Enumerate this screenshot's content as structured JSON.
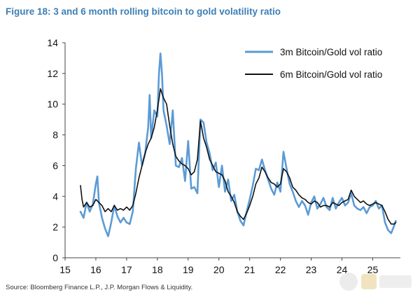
{
  "figure_title": "Figure 18: 3 and 6 month rolling bitcoin to gold volatility ratio",
  "source": "Source: Bloomberg Finance L.P., J.P. Morgan Flows & Liquidity.",
  "colors": {
    "series_3m": "#5b9bd5",
    "series_6m": "#111111",
    "title": "#3d7fb5"
  },
  "chart_data": {
    "type": "line",
    "title": "",
    "xlabel": "",
    "ylabel": "",
    "xlim": [
      15,
      25.9
    ],
    "ylim": [
      0,
      14
    ],
    "xticks": [
      15,
      16,
      17,
      18,
      19,
      20,
      21,
      22,
      23,
      24,
      25
    ],
    "yticks": [
      0,
      2,
      4,
      6,
      8,
      10,
      12,
      14
    ],
    "grid": false,
    "legend": "top-right",
    "series": [
      {
        "name": "3m Bitcoin/Gold vol ratio",
        "color": "#5b9bd5",
        "points": [
          [
            15.5,
            3.0
          ],
          [
            15.6,
            2.6
          ],
          [
            15.7,
            3.6
          ],
          [
            15.8,
            3.0
          ],
          [
            15.9,
            3.5
          ],
          [
            16.0,
            4.8
          ],
          [
            16.05,
            5.3
          ],
          [
            16.1,
            3.6
          ],
          [
            16.2,
            2.6
          ],
          [
            16.3,
            1.9
          ],
          [
            16.4,
            1.4
          ],
          [
            16.5,
            2.3
          ],
          [
            16.6,
            3.4
          ],
          [
            16.7,
            2.7
          ],
          [
            16.8,
            2.3
          ],
          [
            16.9,
            2.6
          ],
          [
            17.0,
            2.3
          ],
          [
            17.1,
            2.2
          ],
          [
            17.2,
            3.0
          ],
          [
            17.3,
            5.8
          ],
          [
            17.4,
            7.5
          ],
          [
            17.5,
            6.0
          ],
          [
            17.6,
            6.8
          ],
          [
            17.7,
            8.5
          ],
          [
            17.75,
            10.6
          ],
          [
            17.8,
            7.8
          ],
          [
            17.9,
            9.6
          ],
          [
            18.0,
            9.2
          ],
          [
            18.05,
            11.9
          ],
          [
            18.1,
            13.3
          ],
          [
            18.15,
            12.0
          ],
          [
            18.2,
            9.6
          ],
          [
            18.3,
            8.6
          ],
          [
            18.4,
            7.4
          ],
          [
            18.5,
            9.6
          ],
          [
            18.6,
            6.0
          ],
          [
            18.7,
            5.9
          ],
          [
            18.8,
            6.5
          ],
          [
            18.9,
            5.0
          ],
          [
            19.0,
            7.6
          ],
          [
            19.1,
            4.5
          ],
          [
            19.2,
            4.6
          ],
          [
            19.3,
            4.2
          ],
          [
            19.4,
            9.0
          ],
          [
            19.5,
            8.8
          ],
          [
            19.6,
            7.5
          ],
          [
            19.7,
            6.8
          ],
          [
            19.8,
            5.7
          ],
          [
            19.9,
            6.2
          ],
          [
            20.0,
            4.6
          ],
          [
            20.1,
            6.0
          ],
          [
            20.2,
            4.3
          ],
          [
            20.3,
            5.1
          ],
          [
            20.4,
            3.7
          ],
          [
            20.5,
            4.1
          ],
          [
            20.6,
            3.0
          ],
          [
            20.7,
            2.4
          ],
          [
            20.8,
            2.1
          ],
          [
            20.9,
            3.0
          ],
          [
            21.0,
            3.8
          ],
          [
            21.1,
            4.7
          ],
          [
            21.2,
            5.8
          ],
          [
            21.3,
            5.7
          ],
          [
            21.4,
            6.4
          ],
          [
            21.5,
            5.7
          ],
          [
            21.6,
            5.1
          ],
          [
            21.7,
            4.5
          ],
          [
            21.8,
            4.1
          ],
          [
            21.9,
            4.9
          ],
          [
            22.0,
            4.3
          ],
          [
            22.1,
            6.9
          ],
          [
            22.2,
            5.8
          ],
          [
            22.3,
            4.8
          ],
          [
            22.4,
            4.3
          ],
          [
            22.5,
            3.7
          ],
          [
            22.6,
            3.3
          ],
          [
            22.7,
            3.7
          ],
          [
            22.8,
            3.4
          ],
          [
            22.9,
            2.8
          ],
          [
            23.0,
            3.6
          ],
          [
            23.1,
            4.0
          ],
          [
            23.2,
            3.2
          ],
          [
            23.3,
            3.5
          ],
          [
            23.4,
            3.9
          ],
          [
            23.5,
            3.3
          ],
          [
            23.6,
            3.1
          ],
          [
            23.7,
            3.9
          ],
          [
            23.8,
            3.2
          ],
          [
            23.9,
            3.6
          ],
          [
            24.0,
            3.9
          ],
          [
            24.1,
            3.4
          ],
          [
            24.2,
            3.6
          ],
          [
            24.3,
            4.2
          ],
          [
            24.4,
            3.4
          ],
          [
            24.5,
            3.2
          ],
          [
            24.6,
            3.1
          ],
          [
            24.7,
            3.3
          ],
          [
            24.8,
            2.9
          ],
          [
            24.9,
            3.3
          ],
          [
            25.0,
            3.4
          ],
          [
            25.1,
            3.7
          ],
          [
            25.2,
            3.2
          ],
          [
            25.3,
            3.4
          ],
          [
            25.4,
            2.3
          ],
          [
            25.5,
            1.8
          ],
          [
            25.6,
            1.6
          ],
          [
            25.7,
            2.1
          ],
          [
            25.75,
            2.4
          ]
        ]
      },
      {
        "name": "6m Bitcoin/Gold vol ratio",
        "color": "#111111",
        "points": [
          [
            15.5,
            4.7
          ],
          [
            15.55,
            3.8
          ],
          [
            15.6,
            3.3
          ],
          [
            15.7,
            3.6
          ],
          [
            15.8,
            3.3
          ],
          [
            15.9,
            3.4
          ],
          [
            16.0,
            3.8
          ],
          [
            16.1,
            3.6
          ],
          [
            16.2,
            3.4
          ],
          [
            16.3,
            3.0
          ],
          [
            16.4,
            3.2
          ],
          [
            16.5,
            3.0
          ],
          [
            16.6,
            3.4
          ],
          [
            16.7,
            3.1
          ],
          [
            16.8,
            3.2
          ],
          [
            16.9,
            3.1
          ],
          [
            17.0,
            3.3
          ],
          [
            17.1,
            3.1
          ],
          [
            17.2,
            3.4
          ],
          [
            17.3,
            4.2
          ],
          [
            17.4,
            5.2
          ],
          [
            17.5,
            6.0
          ],
          [
            17.6,
            6.8
          ],
          [
            17.7,
            7.4
          ],
          [
            17.8,
            7.8
          ],
          [
            17.9,
            8.5
          ],
          [
            18.0,
            9.6
          ],
          [
            18.1,
            11.0
          ],
          [
            18.2,
            10.4
          ],
          [
            18.3,
            10.0
          ],
          [
            18.4,
            8.6
          ],
          [
            18.5,
            7.4
          ],
          [
            18.6,
            6.6
          ],
          [
            18.7,
            6.3
          ],
          [
            18.8,
            6.1
          ],
          [
            18.9,
            6.0
          ],
          [
            19.0,
            5.8
          ],
          [
            19.1,
            5.4
          ],
          [
            19.2,
            5.6
          ],
          [
            19.3,
            6.4
          ],
          [
            19.4,
            8.9
          ],
          [
            19.5,
            7.8
          ],
          [
            19.6,
            7.2
          ],
          [
            19.7,
            6.4
          ],
          [
            19.8,
            6.0
          ],
          [
            19.9,
            5.6
          ],
          [
            20.0,
            5.5
          ],
          [
            20.1,
            5.4
          ],
          [
            20.2,
            5.0
          ],
          [
            20.3,
            4.3
          ],
          [
            20.4,
            4.0
          ],
          [
            20.5,
            3.6
          ],
          [
            20.6,
            3.0
          ],
          [
            20.7,
            2.7
          ],
          [
            20.8,
            2.5
          ],
          [
            20.9,
            2.9
          ],
          [
            21.0,
            3.4
          ],
          [
            21.1,
            4.0
          ],
          [
            21.2,
            4.8
          ],
          [
            21.3,
            5.2
          ],
          [
            21.4,
            5.9
          ],
          [
            21.5,
            5.6
          ],
          [
            21.6,
            5.2
          ],
          [
            21.7,
            4.9
          ],
          [
            21.8,
            4.8
          ],
          [
            21.9,
            4.6
          ],
          [
            22.0,
            4.8
          ],
          [
            22.1,
            5.8
          ],
          [
            22.2,
            5.6
          ],
          [
            22.3,
            5.2
          ],
          [
            22.4,
            4.6
          ],
          [
            22.5,
            4.4
          ],
          [
            22.6,
            4.1
          ],
          [
            22.7,
            3.9
          ],
          [
            22.8,
            3.8
          ],
          [
            22.9,
            3.6
          ],
          [
            23.0,
            3.5
          ],
          [
            23.1,
            3.7
          ],
          [
            23.2,
            3.6
          ],
          [
            23.3,
            3.3
          ],
          [
            23.4,
            3.4
          ],
          [
            23.5,
            3.4
          ],
          [
            23.6,
            3.3
          ],
          [
            23.7,
            3.6
          ],
          [
            23.8,
            3.5
          ],
          [
            23.9,
            3.4
          ],
          [
            24.0,
            3.6
          ],
          [
            24.1,
            3.7
          ],
          [
            24.2,
            3.8
          ],
          [
            24.3,
            4.4
          ],
          [
            24.4,
            4.0
          ],
          [
            24.5,
            3.8
          ],
          [
            24.6,
            3.6
          ],
          [
            24.7,
            3.7
          ],
          [
            24.8,
            3.5
          ],
          [
            24.9,
            3.4
          ],
          [
            25.0,
            3.5
          ],
          [
            25.1,
            3.6
          ],
          [
            25.2,
            3.5
          ],
          [
            25.3,
            3.4
          ],
          [
            25.4,
            3.0
          ],
          [
            25.5,
            2.5
          ],
          [
            25.6,
            2.2
          ],
          [
            25.7,
            2.2
          ],
          [
            25.75,
            2.3
          ]
        ]
      }
    ]
  }
}
